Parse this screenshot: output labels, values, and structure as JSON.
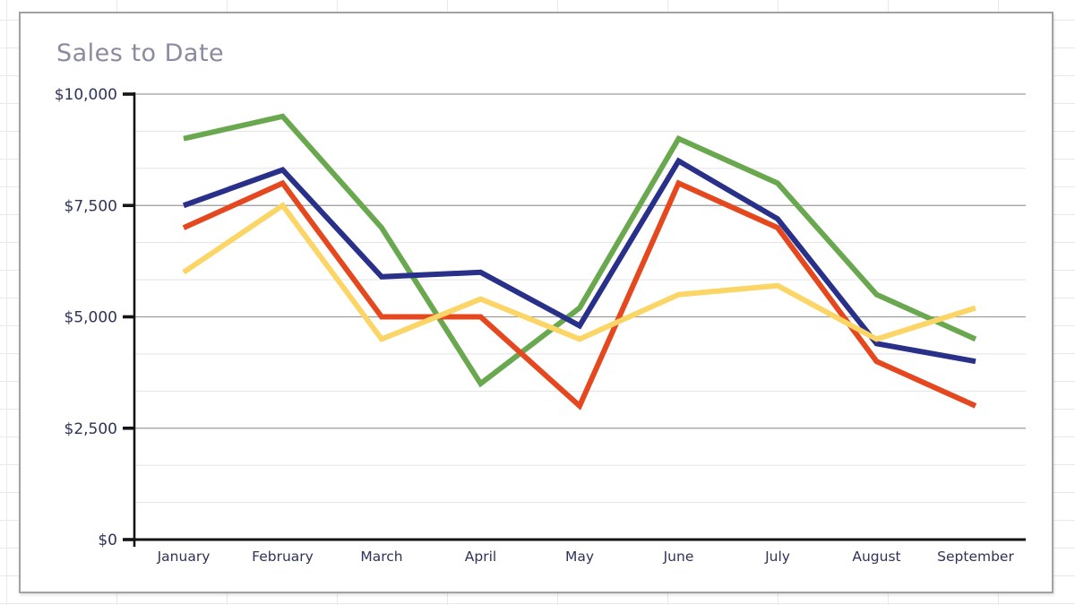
{
  "chart": {
    "title": "Sales to Date"
  },
  "chart_data": {
    "type": "line",
    "title": "Sales to Date",
    "categories": [
      "January",
      "February",
      "March",
      "April",
      "May",
      "June",
      "July",
      "August",
      "September"
    ],
    "series": [
      {
        "name": "green",
        "color": "#6aa84f",
        "values": [
          9000,
          9500,
          7000,
          3500,
          5200,
          9000,
          8000,
          5500,
          4500
        ]
      },
      {
        "name": "navy",
        "color": "#293089",
        "values": [
          7500,
          8300,
          5900,
          6000,
          4800,
          8500,
          7200,
          4400,
          4000
        ]
      },
      {
        "name": "orange",
        "color": "#e5481f",
        "values": [
          7000,
          8000,
          5000,
          5000,
          3000,
          8000,
          7000,
          4000,
          3000
        ]
      },
      {
        "name": "yellow",
        "color": "#fbd566",
        "values": [
          6000,
          7500,
          4500,
          5400,
          4500,
          5500,
          5700,
          4500,
          5200
        ]
      }
    ],
    "xlabel": "",
    "ylabel": "",
    "ylim": [
      0,
      10000
    ],
    "y_ticks": [
      {
        "value": 0,
        "label": "$0"
      },
      {
        "value": 2500,
        "label": "$2,500"
      },
      {
        "value": 5000,
        "label": "$5,000"
      },
      {
        "value": 7500,
        "label": "$7,500"
      },
      {
        "value": 10000,
        "label": "$10,000"
      }
    ],
    "minor_divisions_per_major": 3,
    "grid": "horizontal major and minor gridlines",
    "legend": "none"
  },
  "colors": {
    "title_text": "#8a8aa1",
    "axis_label_text": "#2f3358",
    "axis_line": "#141414",
    "major_gridline": "#9c9c9c",
    "minor_gridline": "#e3e3e3",
    "panel_border": "#a2a2a2",
    "spreadsheet_gridline": "#e8e9ee"
  }
}
